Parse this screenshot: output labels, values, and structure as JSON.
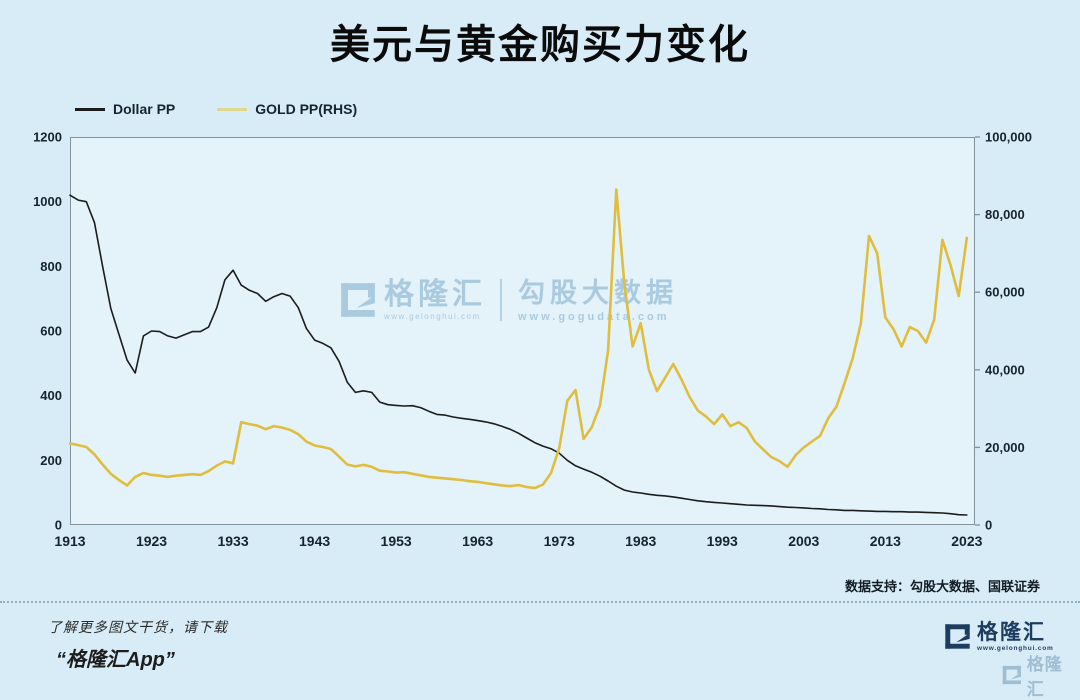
{
  "title": "美元与黄金购买力变化",
  "legend": [
    {
      "label": "Dollar PP",
      "swatch_color": "#1c1c1c"
    },
    {
      "label": "GOLD PP(RHS)",
      "swatch_color": "#ded98f"
    }
  ],
  "watermark": {
    "brand": "格隆汇",
    "brand_url": "www.gelonghui.com",
    "partner": "勾股大数据",
    "partner_url": "www.gogudata.com"
  },
  "source_note": "数据支持：勾股大数据、国联证券",
  "footer": {
    "promo_line1": "了解更多图文干货，请下载",
    "promo_line2": "“格隆汇App”",
    "logo_text": "格隆汇",
    "logo_url": "www.gelonghui.com"
  },
  "colors": {
    "page_bg": "#d7ecf6",
    "plot_bg": "#e4f2fa",
    "plot_border": "#82929d",
    "dollar_line": "#1c1c1c",
    "gold_line": "#dfbe3e",
    "axis_text": "#16242e",
    "watermark": "#9cc2d9",
    "logo_navy": "#1d3c5f"
  },
  "chart_data": {
    "type": "line",
    "title": "美元与黄金购买力变化",
    "grid": false,
    "legend_position": "top-left",
    "x_range": [
      1913,
      2024
    ],
    "x_ticks": [
      1913,
      1923,
      1933,
      1943,
      1953,
      1963,
      1973,
      1983,
      1993,
      2003,
      2013,
      2023
    ],
    "left_axis": {
      "label": "Dollar PP",
      "range": [
        0,
        1200
      ],
      "ticks": [
        0,
        200,
        400,
        600,
        800,
        1000,
        1200
      ]
    },
    "right_axis": {
      "label": "GOLD PP(RHS)",
      "range": [
        0,
        100000
      ],
      "ticks": [
        0,
        20000,
        40000,
        60000,
        80000,
        100000
      ],
      "format": "comma"
    },
    "series": [
      {
        "name": "Dollar PP",
        "axis": "left",
        "color": "#1c1c1c",
        "width": 1.6,
        "x_start": 1913,
        "x_step": 1,
        "values": [
          1020,
          1005,
          1000,
          935,
          800,
          670,
          590,
          510,
          470,
          585,
          600,
          598,
          585,
          578,
          588,
          598,
          598,
          612,
          672,
          758,
          788,
          742,
          726,
          716,
          692,
          706,
          716,
          708,
          672,
          608,
          572,
          562,
          548,
          506,
          442,
          410,
          415,
          410,
          380,
          372,
          370,
          368,
          369,
          363,
          352,
          342,
          340,
          334,
          330,
          327,
          323,
          319,
          313,
          305,
          296,
          284,
          269,
          255,
          244,
          236,
          222,
          200,
          183,
          173,
          163,
          151,
          136,
          120,
          108,
          102,
          99,
          95,
          92,
          90,
          87,
          83,
          79,
          75,
          72,
          70,
          68,
          66,
          64,
          62,
          61,
          60,
          59,
          57,
          55,
          54,
          53,
          51,
          50,
          48,
          47,
          45,
          45,
          44,
          43,
          42,
          42,
          41,
          41,
          40,
          40,
          39,
          38,
          37,
          35,
          32,
          31
        ]
      },
      {
        "name": "GOLD PP(RHS)",
        "axis": "right",
        "color": "#dfbe3e",
        "width": 2.6,
        "x_start": 1913,
        "x_step": 1,
        "values": [
          21000,
          20600,
          20100,
          18200,
          15600,
          13200,
          11600,
          10200,
          12400,
          13400,
          12900,
          12700,
          12400,
          12700,
          12900,
          13100,
          12900,
          13900,
          15300,
          16400,
          15900,
          26500,
          26000,
          25600,
          24700,
          25500,
          25100,
          24500,
          23400,
          21500,
          20500,
          20100,
          19600,
          17600,
          15600,
          15100,
          15500,
          15000,
          14000,
          13800,
          13500,
          13600,
          13200,
          12800,
          12400,
          12200,
          12000,
          11800,
          11600,
          11300,
          11100,
          10800,
          10500,
          10200,
          10000,
          10300,
          9800,
          9500,
          10400,
          13400,
          19800,
          32000,
          34800,
          22200,
          25200,
          30800,
          45000,
          86500,
          62000,
          46000,
          52000,
          40000,
          34500,
          38000,
          41500,
          37500,
          33000,
          29500,
          28000,
          26000,
          28500,
          25500,
          26500,
          25000,
          21500,
          19500,
          17500,
          16500,
          15000,
          18000,
          20000,
          21500,
          23000,
          27500,
          30500,
          36500,
          43000,
          52000,
          74500,
          70000,
          53500,
          50500,
          46000,
          51000,
          50000,
          47000,
          53000,
          73500,
          67000,
          59000,
          74000
        ]
      }
    ]
  }
}
